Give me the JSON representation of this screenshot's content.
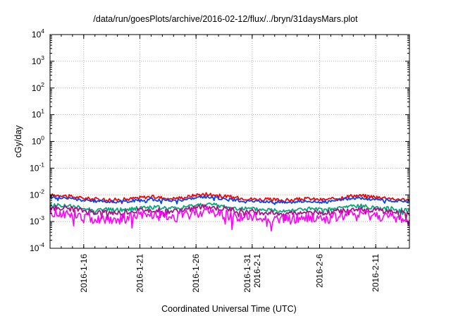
{
  "chart_data": {
    "type": "line",
    "title": "/data/run/goesPlots/archive/2016-02-12/flux/../bryn/31daysMars.plot",
    "xlabel": "Coordinated Universal Time (UTC)",
    "ylabel": "cGy/day",
    "y_scale": "log",
    "ylim": [
      0.0001,
      10000
    ],
    "xlim": [
      "2016-01-13 00:00",
      "2016-02-14 00:00"
    ],
    "grid": true,
    "legend": "none",
    "y_ticks": [
      {
        "base": "10",
        "exp": "-4",
        "value": 0.0001
      },
      {
        "base": "10",
        "exp": "-3",
        "value": 0.001
      },
      {
        "base": "10",
        "exp": "-2",
        "value": 0.01
      },
      {
        "base": "10",
        "exp": "-1",
        "value": 0.1
      },
      {
        "base": "10",
        "exp": "0",
        "value": 1
      },
      {
        "base": "10",
        "exp": "1",
        "value": 10
      },
      {
        "base": "10",
        "exp": "2",
        "value": 100
      },
      {
        "base": "10",
        "exp": "3",
        "value": 1000
      },
      {
        "base": "10",
        "exp": "4",
        "value": 10000
      }
    ],
    "x_ticks": [
      {
        "date": "2016-01-16",
        "lines": [
          "2016-1-16"
        ]
      },
      {
        "date": "2016-01-21",
        "lines": [
          "2016-1-21"
        ]
      },
      {
        "date": "2016-01-26",
        "lines": [
          "2016-1-26"
        ]
      },
      {
        "date": "2016-01-31",
        "lines": [
          "2016-1-31",
          "2016-2-1"
        ]
      },
      {
        "date": "2016-02-06",
        "lines": [
          "2016-2-6"
        ]
      },
      {
        "date": "2016-02-11",
        "lines": [
          "2016-2-11"
        ]
      }
    ],
    "x": [
      "2016-01-13",
      "2016-01-14",
      "2016-01-15",
      "2016-01-16",
      "2016-01-17",
      "2016-01-18",
      "2016-01-19",
      "2016-01-20",
      "2016-01-21",
      "2016-01-22",
      "2016-01-23",
      "2016-01-24",
      "2016-01-25",
      "2016-01-26",
      "2016-01-27",
      "2016-01-28",
      "2016-01-29",
      "2016-01-30",
      "2016-01-31",
      "2016-02-01",
      "2016-02-02",
      "2016-02-03",
      "2016-02-04",
      "2016-02-05",
      "2016-02-06",
      "2016-02-07",
      "2016-02-08",
      "2016-02-09",
      "2016-02-10",
      "2016-02-11",
      "2016-02-12",
      "2016-02-13",
      "2016-02-14"
    ],
    "series": [
      {
        "color": "#ff0000",
        "values": [
          0.0095,
          0.0098,
          0.0085,
          0.0075,
          0.007,
          0.0068,
          0.0066,
          0.007,
          0.008,
          0.0085,
          0.0078,
          0.0074,
          0.008,
          0.01,
          0.011,
          0.0095,
          0.0085,
          0.0075,
          0.007,
          0.0068,
          0.0066,
          0.0064,
          0.0068,
          0.0072,
          0.0066,
          0.0068,
          0.0082,
          0.0095,
          0.0092,
          0.0085,
          0.0078,
          0.007,
          0.0065
        ]
      },
      {
        "color": "#0044ff",
        "values": [
          0.0078,
          0.008,
          0.007,
          0.0062,
          0.0058,
          0.0057,
          0.0055,
          0.0058,
          0.0064,
          0.0068,
          0.0063,
          0.0061,
          0.0066,
          0.0079,
          0.0085,
          0.0076,
          0.0068,
          0.0061,
          0.0058,
          0.0056,
          0.0055,
          0.0053,
          0.0056,
          0.0059,
          0.0054,
          0.0056,
          0.0066,
          0.0076,
          0.0073,
          0.0068,
          0.0062,
          0.0058,
          0.0054
        ]
      },
      {
        "color": "#00aa77",
        "values": [
          0.004,
          0.0041,
          0.0036,
          0.0031,
          0.0028,
          0.0028,
          0.0027,
          0.0029,
          0.0033,
          0.0035,
          0.0032,
          0.0031,
          0.0034,
          0.0041,
          0.0045,
          0.0039,
          0.0035,
          0.0031,
          0.0029,
          0.0028,
          0.0027,
          0.0026,
          0.0028,
          0.003,
          0.0027,
          0.0028,
          0.0033,
          0.0039,
          0.0037,
          0.0034,
          0.0031,
          0.0029,
          0.0027
        ]
      },
      {
        "color": "#aa1188",
        "values": [
          0.0032,
          0.0033,
          0.0029,
          0.0025,
          0.0022,
          0.0022,
          0.0021,
          0.0023,
          0.0026,
          0.0028,
          0.0025,
          0.0024,
          0.0027,
          0.0033,
          0.0036,
          0.0031,
          0.0028,
          0.0025,
          0.0023,
          0.0022,
          0.0021,
          0.002,
          0.0022,
          0.0024,
          0.0021,
          0.0022,
          0.0026,
          0.0031,
          0.0029,
          0.0027,
          0.0024,
          0.0022,
          0.002
        ]
      },
      {
        "color": "#ff00ff",
        "values": [
          0.0022,
          0.0021,
          0.0018,
          0.0015,
          0.0013,
          0.0013,
          0.0012,
          0.0014,
          0.0016,
          0.0018,
          0.0016,
          0.0015,
          0.0017,
          0.0022,
          0.0025,
          0.002,
          0.0017,
          0.0015,
          0.0014,
          0.0013,
          0.0013,
          0.0012,
          0.0013,
          0.0015,
          0.0013,
          0.0013,
          0.0016,
          0.002,
          0.0019,
          0.0017,
          0.0015,
          0.0013,
          0.0012
        ]
      }
    ]
  }
}
